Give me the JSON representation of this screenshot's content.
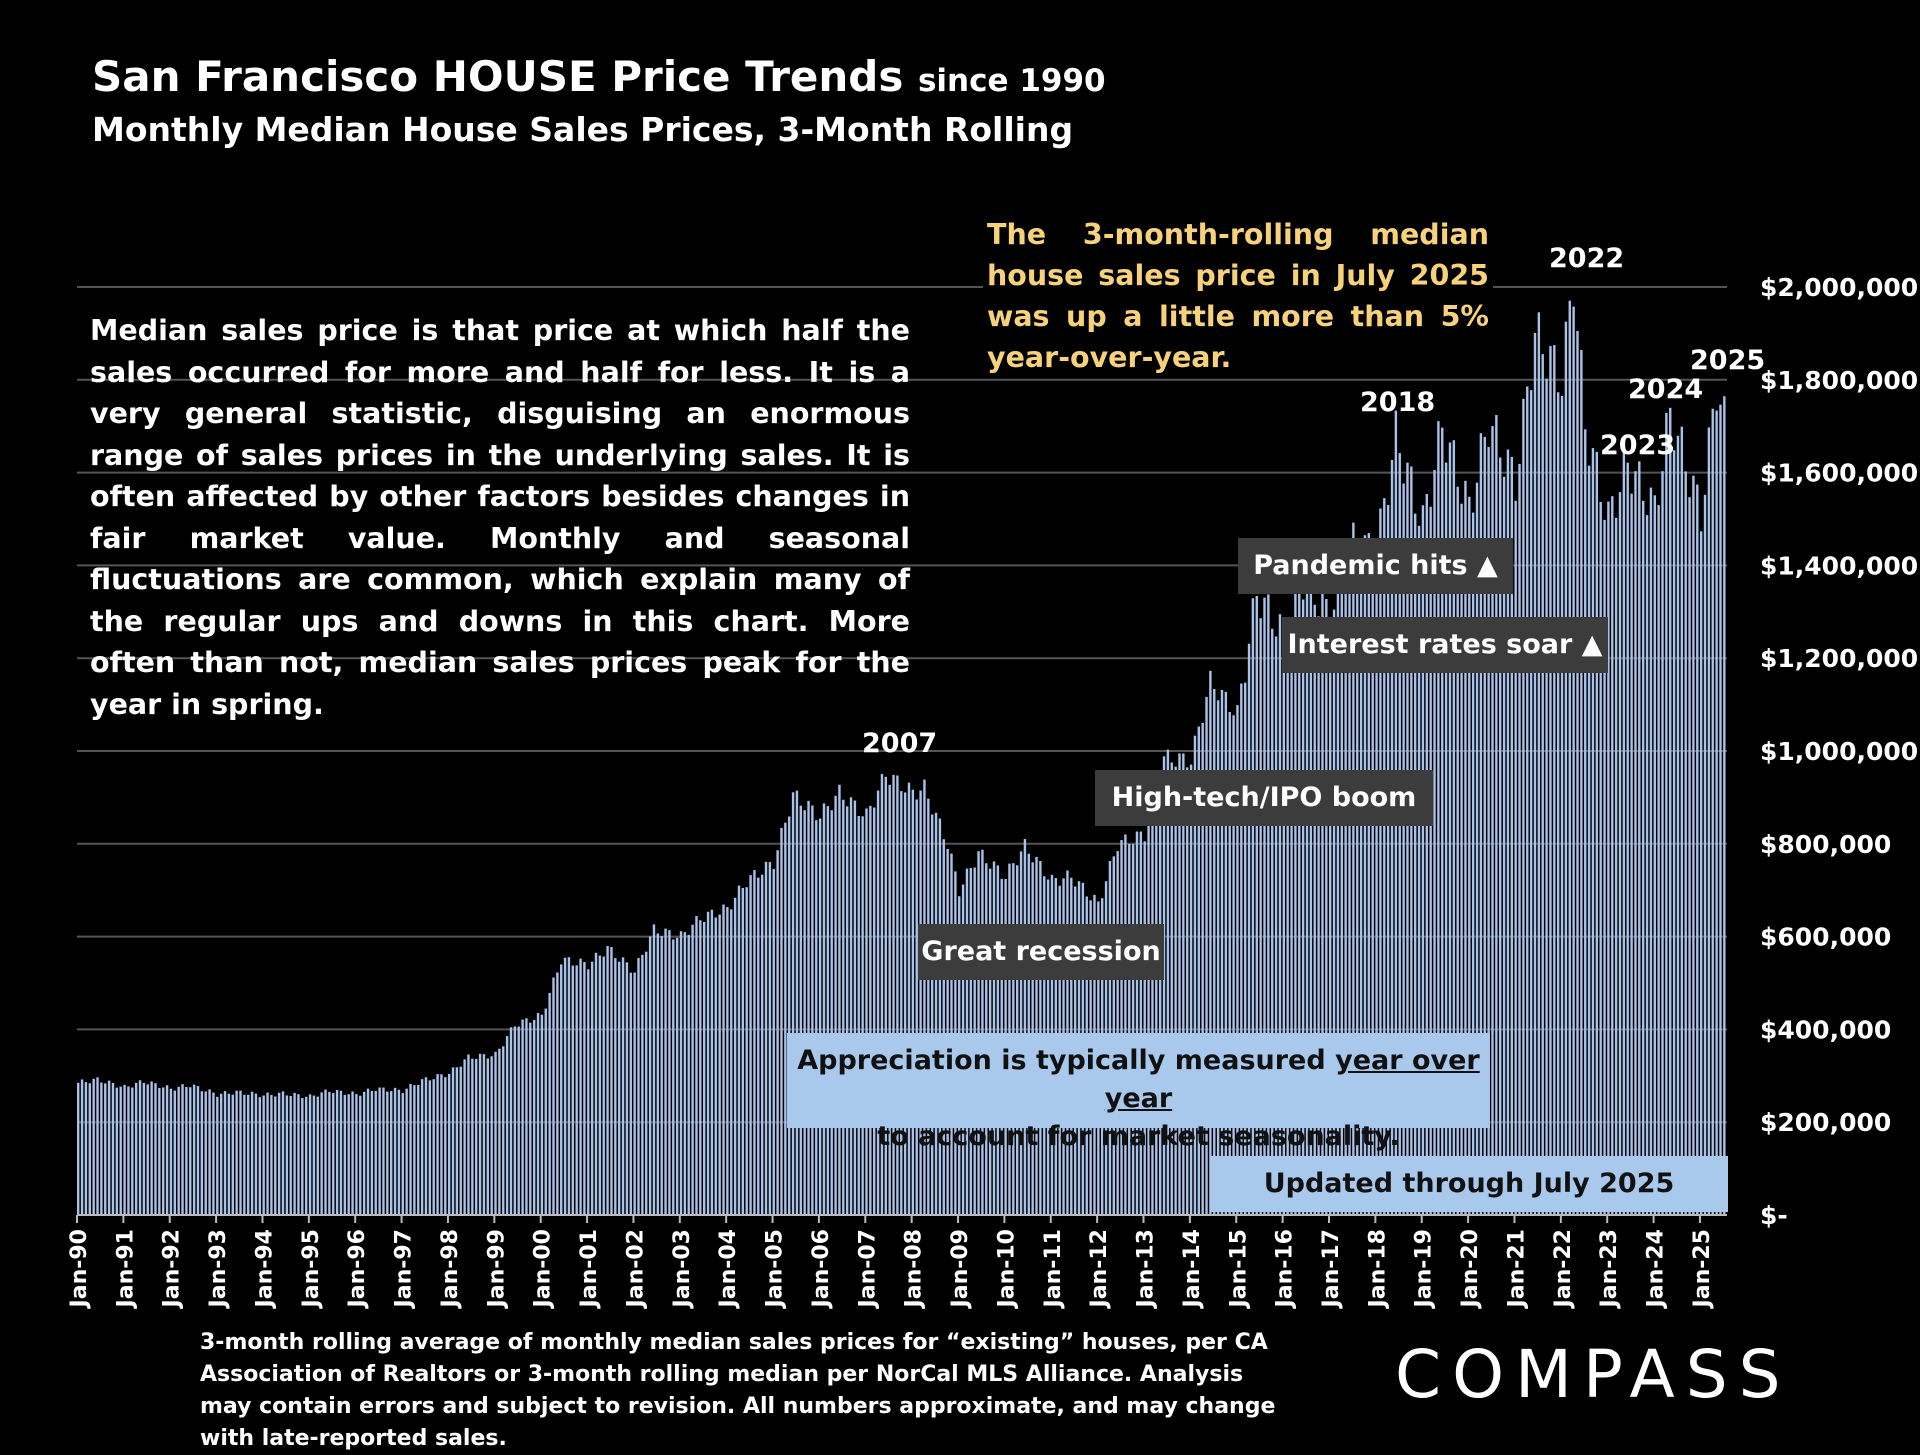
{
  "title": {
    "main": "San Francisco HOUSE Price Trends",
    "since": "since 1990",
    "subtitle": "Monthly Median House Sales Prices, 3-Month Rolling"
  },
  "explanation": "Median sales price is that price at which half the sales occurred for more and half for less. It is a very general statistic, disguising an enormous range of sales prices in the underlying sales. It is often affected by other factors besides changes in fair market value. Monthly and seasonal fluctuations are common, which explain many of the regular ups and downs in this chart. More often than not, median sales prices peak for the year in spring.",
  "callout": "The 3-month-rolling median house sales price in July 2025 was up a little more than 5% year-over-year.",
  "annotations": {
    "pandemic": "Pandemic hits ▲",
    "rates": "Interest rates soar ▲",
    "hightech": "High-tech/IPO boom",
    "recession": "Great recession"
  },
  "year_labels": {
    "y2007": "2007",
    "y2018": "2018",
    "y2022": "2022",
    "y2023": "2023",
    "y2024": "2024",
    "y2025": "2025"
  },
  "appreciation": {
    "pre": "Appreciation is typically measured ",
    "link": "year over year",
    "post": "to account for market seasonality."
  },
  "updated": "Updated through July 2025",
  "footnote": "3-month rolling average of monthly median sales prices for “existing” houses, per CA Association of Realtors or 3-month rolling median per NorCal MLS Alliance. Analysis may contain errors and subject to revision. All numbers approximate, and may change with late-reported sales.",
  "logo": "COMPASS",
  "colors": {
    "bar": "#a9c2e8",
    "background": "#000000",
    "grid": "#555555",
    "callout": "#f7d27a"
  },
  "chart_data": {
    "type": "bar",
    "x_start": "Jan-90",
    "x_end": "Jul-25",
    "frequency": "monthly",
    "ylim": [
      0,
      2000000
    ],
    "yticks": [
      "$-",
      "$200,000",
      "$400,000",
      "$600,000",
      "$800,000",
      "$1,000,000",
      "$1,200,000",
      "$1,400,000",
      "$1,600,000",
      "$1,800,000",
      "$2,000,000"
    ],
    "xticks": [
      "Jan-90",
      "Jan-91",
      "Jan-92",
      "Jan-93",
      "Jan-94",
      "Jan-95",
      "Jan-96",
      "Jan-97",
      "Jan-98",
      "Jan-99",
      "Jan-00",
      "Jan-01",
      "Jan-02",
      "Jan-03",
      "Jan-04",
      "Jan-05",
      "Jan-06",
      "Jan-07",
      "Jan-08",
      "Jan-09",
      "Jan-10",
      "Jan-11",
      "Jan-12",
      "Jan-13",
      "Jan-14",
      "Jan-15",
      "Jan-16",
      "Jan-17",
      "Jan-18",
      "Jan-19",
      "Jan-20",
      "Jan-21",
      "Jan-22",
      "Jan-23",
      "Jan-24",
      "Jan-25"
    ],
    "grid": true,
    "anchors": [
      [
        "Jan-90",
        285000
      ],
      [
        "Jun-90",
        292000
      ],
      [
        "Jan-91",
        275000
      ],
      [
        "Jun-91",
        288000
      ],
      [
        "Jan-92",
        272000
      ],
      [
        "Jun-92",
        280000
      ],
      [
        "Jan-93",
        260000
      ],
      [
        "Jun-93",
        265000
      ],
      [
        "Jan-94",
        258000
      ],
      [
        "Jun-94",
        262000
      ],
      [
        "Jan-95",
        255000
      ],
      [
        "Jun-95",
        268000
      ],
      [
        "Jan-96",
        260000
      ],
      [
        "Jun-96",
        272000
      ],
      [
        "Jan-97",
        268000
      ],
      [
        "Jun-97",
        290000
      ],
      [
        "Jan-98",
        305000
      ],
      [
        "Jun-98",
        340000
      ],
      [
        "Jan-99",
        345000
      ],
      [
        "Jun-99",
        410000
      ],
      [
        "Jan-00",
        430000
      ],
      [
        "Jun-00",
        550000
      ],
      [
        "Jan-01",
        540000
      ],
      [
        "Jun-01",
        575000
      ],
      [
        "Jan-02",
        525000
      ],
      [
        "Jun-02",
        615000
      ],
      [
        "Jan-03",
        600000
      ],
      [
        "Jun-03",
        640000
      ],
      [
        "Jan-04",
        660000
      ],
      [
        "Jun-04",
        720000
      ],
      [
        "Jan-05",
        760000
      ],
      [
        "Jun-05",
        905000
      ],
      [
        "Jan-06",
        860000
      ],
      [
        "Jun-06",
        910000
      ],
      [
        "Jan-07",
        860000
      ],
      [
        "Jun-07",
        950000
      ],
      [
        "Jan-08",
        910000
      ],
      [
        "Apr-08",
        920000
      ],
      [
        "Oct-08",
        800000
      ],
      [
        "Jan-09",
        700000
      ],
      [
        "Jun-09",
        780000
      ],
      [
        "Jan-10",
        730000
      ],
      [
        "Jun-10",
        795000
      ],
      [
        "Jan-11",
        720000
      ],
      [
        "Jun-11",
        730000
      ],
      [
        "Jan-12",
        670000
      ],
      [
        "Jun-12",
        800000
      ],
      [
        "Jan-13",
        820000
      ],
      [
        "Jun-13",
        985000
      ],
      [
        "Jan-14",
        980000
      ],
      [
        "Jun-14",
        1150000
      ],
      [
        "Jan-15",
        1080000
      ],
      [
        "Jun-15",
        1340000
      ],
      [
        "Jan-16",
        1250000
      ],
      [
        "Jun-16",
        1370000
      ],
      [
        "Jan-17",
        1290000
      ],
      [
        "Jun-17",
        1450000
      ],
      [
        "Jan-18",
        1430000
      ],
      [
        "Jun-18",
        1680000
      ],
      [
        "Jan-19",
        1490000
      ],
      [
        "Jun-19",
        1700000
      ],
      [
        "Jan-20",
        1520000
      ],
      [
        "Jun-20",
        1710000
      ],
      [
        "Jan-21",
        1580000
      ],
      [
        "Jun-21",
        1900000
      ],
      [
        "Jan-22",
        1800000
      ],
      [
        "Apr-22",
        2020000
      ],
      [
        "Jul-22",
        1700000
      ],
      [
        "Jan-23",
        1500000
      ],
      [
        "Jun-23",
        1620000
      ],
      [
        "Jan-24",
        1520000
      ],
      [
        "May-24",
        1730000
      ],
      [
        "Jan-25",
        1510000
      ],
      [
        "May-25",
        1790000
      ],
      [
        "Jul-25",
        1710000
      ]
    ]
  }
}
